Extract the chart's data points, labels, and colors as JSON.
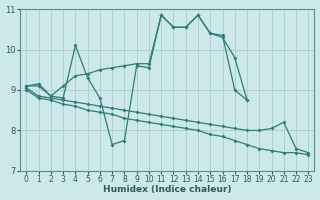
{
  "bg_color": "#cce8ea",
  "grid_color": "#afd0d3",
  "line_color": "#2e7d74",
  "xlabel": "Humidex (Indice chaleur)",
  "xlim": [
    -0.5,
    23.5
  ],
  "ylim": [
    7,
    11
  ],
  "xticks": [
    0,
    1,
    2,
    3,
    4,
    5,
    6,
    7,
    8,
    9,
    10,
    11,
    12,
    13,
    14,
    15,
    16,
    17,
    18,
    19,
    20,
    21,
    22,
    23
  ],
  "yticks": [
    7,
    8,
    9,
    10,
    11
  ],
  "lines": [
    {
      "x": [
        0,
        1,
        2,
        3,
        4,
        5,
        6,
        7,
        8,
        9,
        10,
        11,
        12,
        13,
        14,
        15,
        16,
        17,
        18,
        19,
        20,
        21,
        22,
        23
      ],
      "y": [
        9.1,
        9.1,
        8.85,
        8.8,
        10.1,
        9.3,
        8.8,
        7.65,
        7.75,
        9.6,
        9.55,
        10.85,
        10.55,
        10.55,
        10.85,
        10.4,
        10.3,
        9.8,
        8.75,
        null,
        null,
        null,
        null,
        null
      ]
    },
    {
      "x": [
        0,
        1,
        2,
        3,
        4,
        5,
        6,
        7,
        8,
        9,
        10,
        11,
        12,
        13,
        14,
        15,
        16,
        17,
        18,
        19,
        20,
        21,
        22,
        23
      ],
      "y": [
        9.1,
        9.15,
        8.85,
        9.1,
        9.35,
        9.4,
        9.5,
        9.55,
        9.6,
        9.65,
        9.65,
        10.85,
        10.55,
        10.55,
        10.85,
        10.4,
        10.35,
        9.0,
        8.75,
        null,
        null,
        null,
        null,
        null
      ]
    },
    {
      "x": [
        0,
        1,
        2,
        3,
        4,
        5,
        6,
        7,
        8,
        9,
        10,
        11,
        12,
        13,
        14,
        15,
        16,
        17,
        18,
        19,
        20,
        21,
        22,
        23
      ],
      "y": [
        9.05,
        8.85,
        8.8,
        8.75,
        8.7,
        8.65,
        8.6,
        8.55,
        8.5,
        8.45,
        8.4,
        8.35,
        8.3,
        8.25,
        8.2,
        8.15,
        8.1,
        8.05,
        8.0,
        8.0,
        8.05,
        8.2,
        7.55,
        7.45
      ]
    },
    {
      "x": [
        0,
        1,
        2,
        3,
        4,
        5,
        6,
        7,
        8,
        9,
        10,
        11,
        12,
        13,
        14,
        15,
        16,
        17,
        18,
        19,
        20,
        21,
        22,
        23
      ],
      "y": [
        9.0,
        8.8,
        8.75,
        8.65,
        8.6,
        8.5,
        8.45,
        8.4,
        8.3,
        8.25,
        8.2,
        8.15,
        8.1,
        8.05,
        8.0,
        7.9,
        7.85,
        7.75,
        7.65,
        7.55,
        7.5,
        7.45,
        7.45,
        7.4
      ]
    }
  ]
}
